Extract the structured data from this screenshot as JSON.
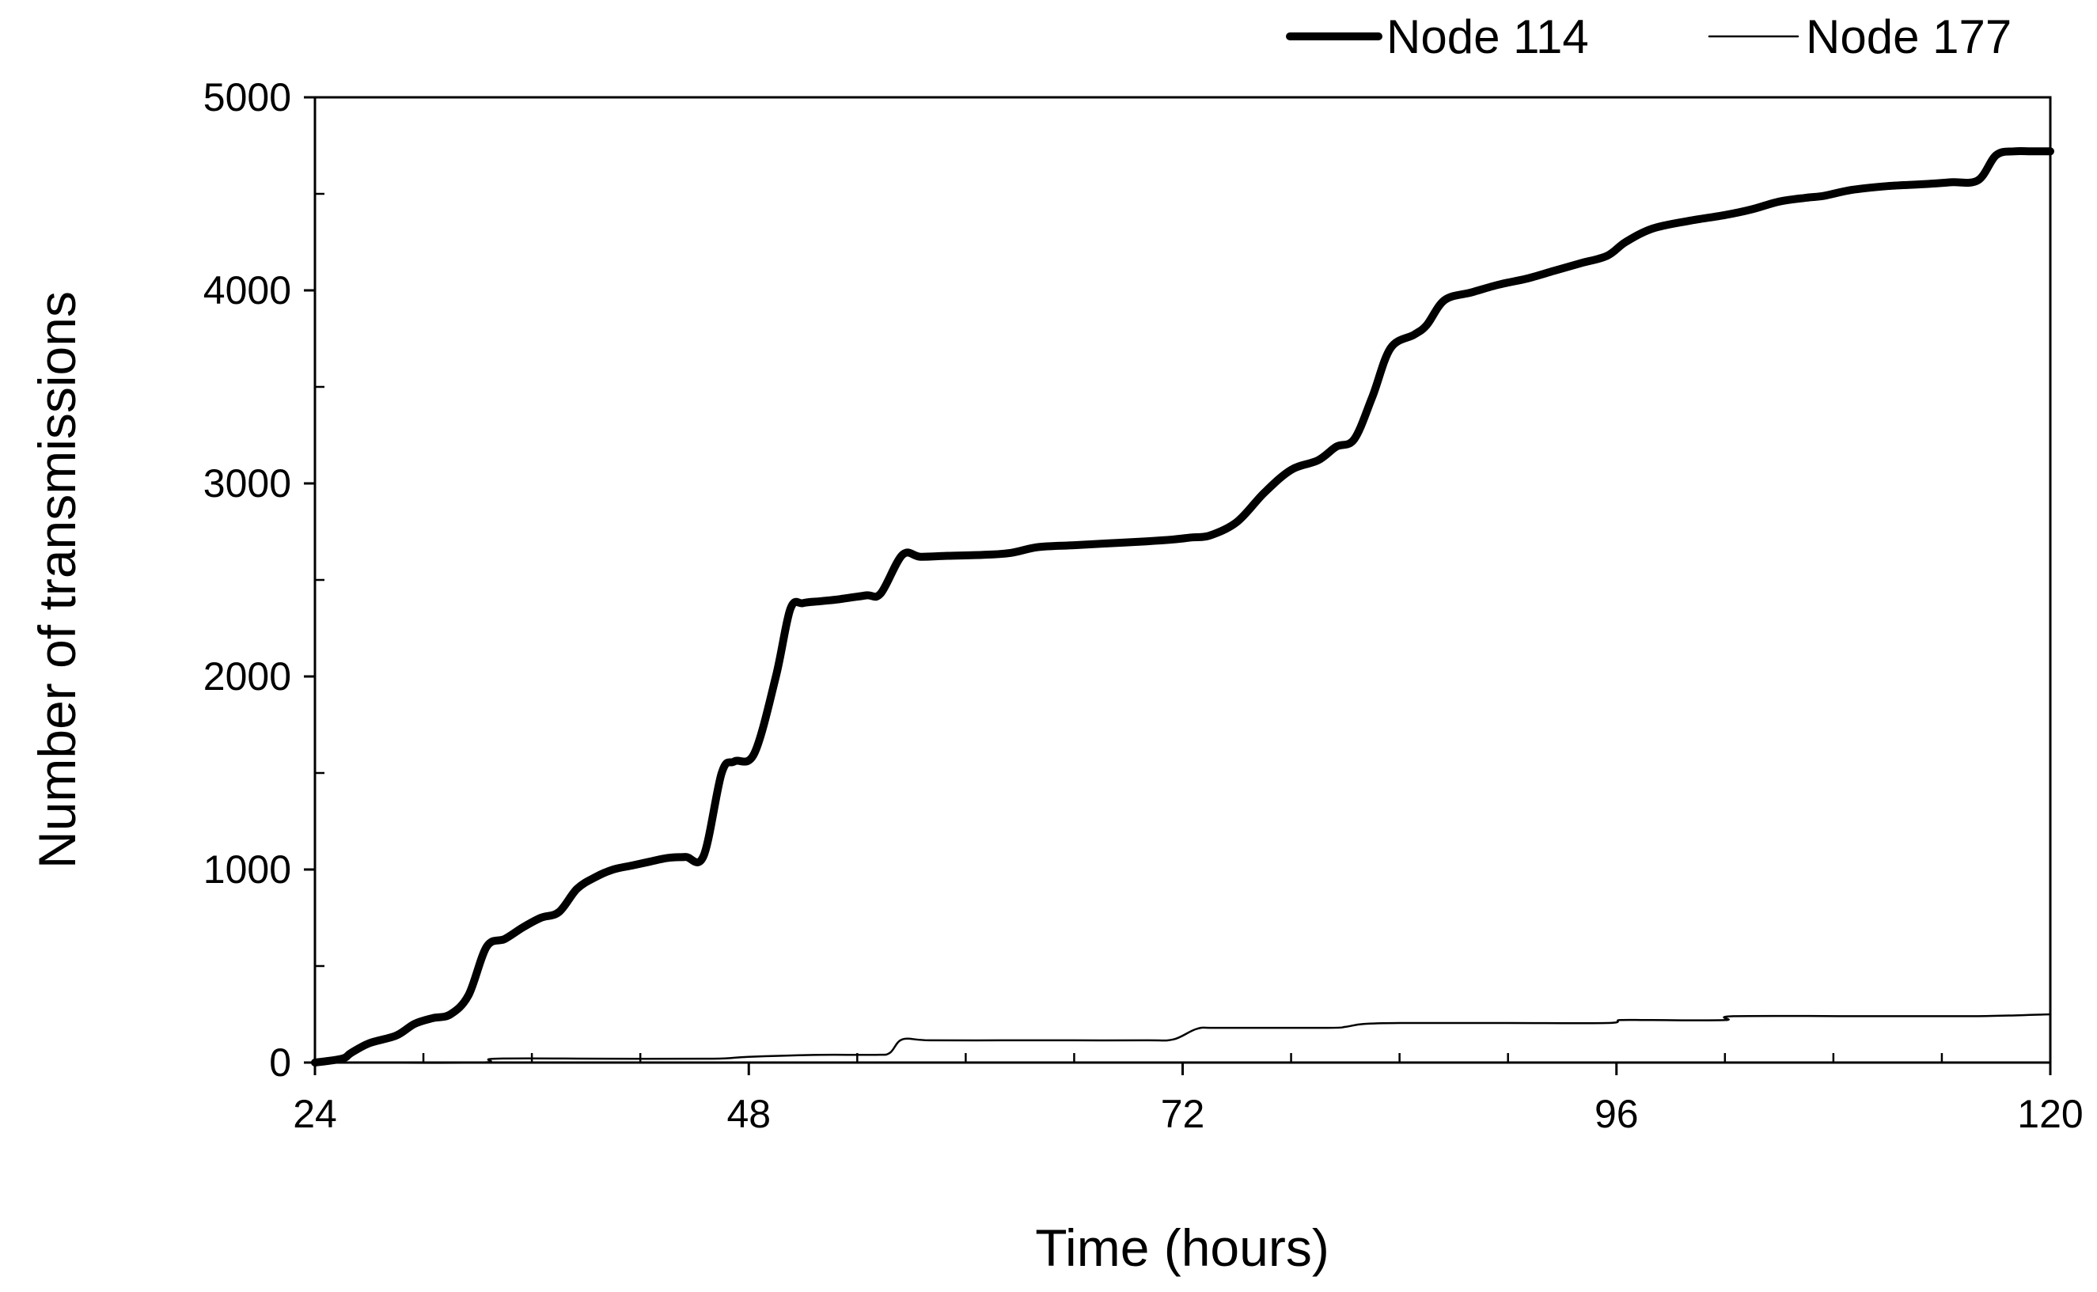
{
  "chart_data": {
    "type": "line",
    "title": "",
    "xlabel": "Time (hours)",
    "ylabel": "Number of transmissions",
    "xlim": [
      24,
      120
    ],
    "ylim": [
      0,
      5000
    ],
    "xticks": [
      24,
      48,
      72,
      96,
      120
    ],
    "yticks": [
      0,
      1000,
      2000,
      3000,
      4000,
      5000
    ],
    "grid": false,
    "legend_position": "top-right",
    "series": [
      {
        "name": "Node 114",
        "color": "#000000",
        "style": "thick",
        "x": [
          24,
          25.5,
          26,
          27,
          28.5,
          29.5,
          30.5,
          31.5,
          32.5,
          33.5,
          34.5,
          35.5,
          36.5,
          37.5,
          38.5,
          39.5,
          40.5,
          41.5,
          42.5,
          43.5,
          44.5,
          45.5,
          46.5,
          47.2,
          48.3,
          49.5,
          50.3,
          51,
          52,
          53,
          54.5,
          55.3,
          56.5,
          57.5,
          59,
          61,
          62.5,
          64,
          66,
          68,
          70,
          71.5,
          72.5,
          73.5,
          75,
          76.5,
          78,
          79.5,
          80.5,
          81.5,
          82.5,
          83.5,
          84.8,
          85.5,
          86.5,
          88,
          89.5,
          91,
          92.5,
          94,
          95.5,
          96.5,
          98,
          100,
          102,
          103.5,
          105,
          106.5,
          107.5,
          109,
          111,
          113,
          114.5,
          116,
          117,
          118,
          119,
          120
        ],
        "y": [
          0,
          20,
          50,
          100,
          140,
          200,
          230,
          250,
          350,
          600,
          640,
          700,
          750,
          780,
          900,
          960,
          1000,
          1020,
          1040,
          1060,
          1065,
          1070,
          1500,
          1560,
          1600,
          2000,
          2350,
          2380,
          2390,
          2400,
          2420,
          2430,
          2630,
          2620,
          2625,
          2630,
          2640,
          2670,
          2680,
          2690,
          2700,
          2710,
          2720,
          2730,
          2800,
          2950,
          3070,
          3120,
          3190,
          3230,
          3450,
          3700,
          3770,
          3820,
          3950,
          3990,
          4030,
          4060,
          4100,
          4140,
          4180,
          4250,
          4320,
          4360,
          4390,
          4420,
          4460,
          4480,
          4490,
          4520,
          4540,
          4550,
          4560,
          4570,
          4700,
          4720,
          4720,
          4720
        ]
      },
      {
        "name": "Node 177",
        "color": "#000000",
        "style": "thin",
        "x": [
          24,
          33,
          34,
          40,
          46,
          48,
          52,
          55,
          55.8,
          56.5,
          58,
          62,
          66,
          70,
          71.5,
          72.8,
          74,
          80,
          81,
          82,
          84,
          90,
          95.5,
          96.2,
          98,
          102,
          102.5,
          110,
          116,
          120
        ],
        "y": [
          0,
          0,
          20,
          20,
          20,
          30,
          40,
          40,
          50,
          120,
          115,
          115,
          115,
          115,
          120,
          175,
          180,
          180,
          185,
          200,
          205,
          205,
          205,
          220,
          220,
          220,
          240,
          240,
          240,
          250
        ]
      }
    ]
  }
}
